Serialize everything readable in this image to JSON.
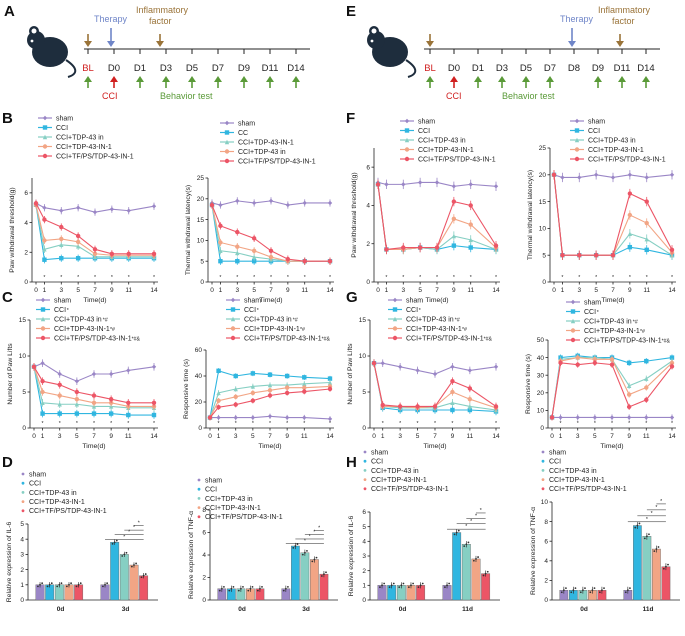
{
  "colors": {
    "sham": "#9a86c6",
    "cci": "#30b6e0",
    "tdp_in": "#86cfc3",
    "tdp_in1": "#f2a585",
    "tf_ps": "#ec5566"
  },
  "timelines": [
    {
      "letter": "A",
      "days": [
        "BL",
        "D0",
        "D1",
        "D3",
        "D5",
        "D7",
        "D9",
        "D11",
        "D14"
      ],
      "therapy": "Therapy",
      "inflam_line1": "Inflammatory",
      "inflam_line2": "factor",
      "cci": "CCI",
      "behavior": "Behavior test"
    },
    {
      "letter": "E",
      "days": [
        "BL",
        "D0",
        "D1",
        "D3",
        "D5",
        "D7",
        "D8",
        "D9",
        "D11",
        "D14"
      ],
      "therapy": "Therapy",
      "inflam_line1": "Inflammatory",
      "inflam_line2": "factor",
      "cci": "CCI",
      "behavior": "Behavior test"
    }
  ],
  "chart_data": [
    {
      "id": "B1",
      "panel": "B",
      "type": "line",
      "ylabel": "Paw withdrawal threshold(g)",
      "xlabel": "Time(d)",
      "x": [
        0,
        1,
        3,
        5,
        7,
        9,
        11,
        14
      ],
      "ylim": [
        0,
        7
      ],
      "yticks": [
        0,
        2,
        4,
        6
      ],
      "legend": [
        "sham",
        "CCI",
        "CCI+TDP-43 in",
        "CCI+TDP-43-IN-1",
        "CCI+TF/PS/TDP-43-IN-1"
      ],
      "series": [
        {
          "name": "sham",
          "values": [
            5.3,
            5.0,
            4.8,
            5.0,
            4.7,
            4.9,
            4.8,
            5.1
          ]
        },
        {
          "name": "CCI",
          "values": [
            5.2,
            1.5,
            1.6,
            1.6,
            1.6,
            1.6,
            1.6,
            1.6
          ]
        },
        {
          "name": "CCI+TDP-43 in",
          "values": [
            5.2,
            2.2,
            2.5,
            2.4,
            1.7,
            1.7,
            1.7,
            1.7
          ]
        },
        {
          "name": "CCI+TDP-43-IN-1",
          "values": [
            5.2,
            2.8,
            2.9,
            2.7,
            1.9,
            1.8,
            1.8,
            1.8
          ]
        },
        {
          "name": "CCI+TF/PS/TDP-43-IN-1",
          "values": [
            5.3,
            4.2,
            3.7,
            3.1,
            2.2,
            1.9,
            1.9,
            1.9
          ]
        }
      ]
    },
    {
      "id": "B2",
      "panel": "B",
      "type": "line",
      "ylabel": "Thermal withdrawal latency(s)",
      "xlabel": "Time(d)",
      "x": [
        0,
        1,
        3,
        5,
        7,
        9,
        11,
        14
      ],
      "ylim": [
        0,
        25
      ],
      "yticks": [
        0,
        5,
        10,
        15,
        20,
        25
      ],
      "legend": [
        "sham",
        "CC",
        "CCI+TDP-43-IN-1",
        "CCI+TDP-43 in",
        "CCI+TF/PS/TDP-43-IN-1"
      ],
      "series": [
        {
          "name": "sham",
          "values": [
            19.0,
            18.5,
            19.5,
            19.0,
            19.5,
            18.5,
            19.0,
            19.0
          ]
        },
        {
          "name": "CC",
          "values": [
            18.5,
            5.0,
            5.0,
            5.0,
            5.0,
            5.0,
            5.0,
            5.0
          ]
        },
        {
          "name": "CCI+TDP-43-IN-1",
          "values": [
            18.5,
            7.5,
            7.0,
            6.0,
            5.5,
            5.0,
            5.0,
            5.0
          ]
        },
        {
          "name": "CCI+TDP-43 in",
          "values": [
            18.5,
            9.5,
            8.5,
            7.5,
            6.0,
            5.0,
            5.0,
            5.0
          ]
        },
        {
          "name": "CCI+TF/PS/TDP-43-IN-1",
          "values": [
            18.5,
            13.5,
            12.0,
            10.5,
            7.5,
            5.5,
            5.0,
            5.0
          ]
        }
      ]
    },
    {
      "id": "C1",
      "panel": "C",
      "type": "line",
      "ylabel": "Number of Paw Lifts",
      "xlabel": "Time(d)",
      "x": [
        0,
        1,
        3,
        5,
        7,
        9,
        11,
        14
      ],
      "ylim": [
        0,
        15
      ],
      "yticks": [
        0,
        5,
        10,
        15
      ],
      "legend": [
        "sham",
        "CCI",
        "CCI+TDP-43 in",
        "CCI+TDP-43-IN-1",
        "CCI+TF/PS/TDP-43-IN-1"
      ],
      "legend_marks": [
        "",
        "*",
        "*#",
        "*#",
        "*#&"
      ],
      "series": [
        {
          "name": "sham",
          "values": [
            8.5,
            9.0,
            7.5,
            6.5,
            7.5,
            7.5,
            8.0,
            8.5
          ]
        },
        {
          "name": "CCI",
          "values": [
            8.5,
            2.0,
            2.0,
            2.0,
            2.0,
            2.0,
            1.8,
            1.8
          ]
        },
        {
          "name": "CCI+TDP-43 in",
          "values": [
            8.5,
            3.5,
            3.3,
            3.3,
            3.0,
            3.0,
            2.8,
            2.8
          ]
        },
        {
          "name": "CCI+TDP-43-IN-1",
          "values": [
            8.5,
            5.0,
            4.5,
            4.0,
            3.5,
            3.5,
            3.0,
            3.0
          ]
        },
        {
          "name": "CCI+TF/PS/TDP-43-IN-1",
          "values": [
            8.5,
            6.5,
            6.0,
            5.0,
            4.5,
            4.0,
            3.5,
            3.5
          ]
        }
      ]
    },
    {
      "id": "C2",
      "panel": "C",
      "type": "line",
      "ylabel": "Responsive time (s)",
      "xlabel": "Time(d)",
      "x": [
        0,
        1,
        3,
        5,
        7,
        9,
        11,
        14
      ],
      "ylim": [
        0,
        60
      ],
      "yticks": [
        0,
        20,
        40,
        60
      ],
      "legend": [
        "sham",
        "CCI",
        "CCI+TDP-43 in",
        "CCI+TDP-43-IN-1",
        "CCI+TF/PS/TDP-43-IN-1"
      ],
      "legend_marks": [
        "",
        "*",
        "*#",
        "*#",
        "*#&"
      ],
      "series": [
        {
          "name": "sham",
          "values": [
            8,
            8,
            8,
            8,
            9,
            8,
            8,
            7
          ]
        },
        {
          "name": "CCI",
          "values": [
            8,
            44,
            40,
            42,
            41,
            40,
            39,
            38
          ]
        },
        {
          "name": "CCI+TDP-43 in",
          "values": [
            8,
            27,
            30,
            32,
            33,
            33,
            34,
            35
          ]
        },
        {
          "name": "CCI+TDP-43-IN-1",
          "values": [
            8,
            21,
            24,
            27,
            29,
            31,
            31,
            32
          ]
        },
        {
          "name": "CCI+TF/PS/TDP-43-IN-1",
          "values": [
            8,
            16,
            18,
            21,
            25,
            27,
            28,
            30
          ]
        }
      ]
    },
    {
      "id": "D1",
      "panel": "D",
      "type": "bar",
      "ylabel": "Relative expression of IL-6",
      "categories": [
        "0d",
        "3d"
      ],
      "ylim": [
        0,
        5
      ],
      "yticks": [
        0,
        1,
        2,
        3,
        4,
        5
      ],
      "legend": [
        "sham",
        "CCI",
        "CCI+TDP-43 in",
        "CCI+TDP-43-IN-1",
        "CCI+TF/PS/TDP-43-IN-1"
      ],
      "series": [
        {
          "name": "sham",
          "values": [
            1.0,
            1.0
          ]
        },
        {
          "name": "CCI",
          "values": [
            1.0,
            3.8
          ]
        },
        {
          "name": "CCI+TDP-43 in",
          "values": [
            1.0,
            3.0
          ]
        },
        {
          "name": "CCI+TDP-43-IN-1",
          "values": [
            1.0,
            2.3
          ]
        },
        {
          "name": "CCI+TF/PS/TDP-43-IN-1",
          "values": [
            1.0,
            1.6
          ]
        }
      ]
    },
    {
      "id": "D2",
      "panel": "D",
      "type": "bar",
      "ylabel": "Relative expression of TNF-α",
      "categories": [
        "0d",
        "3d"
      ],
      "ylim": [
        0,
        8
      ],
      "yticks": [
        0,
        2,
        4,
        6,
        8
      ],
      "legend": [
        "sham",
        "CCI",
        "CCI+TDP-43 in",
        "CCI+TDP-43-IN-1",
        "CCI+TF/PS/TDP-43-IN-1"
      ],
      "series": [
        {
          "name": "sham",
          "values": [
            1.0,
            1.0
          ]
        },
        {
          "name": "CCI",
          "values": [
            1.0,
            4.8
          ]
        },
        {
          "name": "CCI+TDP-43 in",
          "values": [
            1.0,
            4.2
          ]
        },
        {
          "name": "CCI+TDP-43-IN-1",
          "values": [
            1.0,
            3.6
          ]
        },
        {
          "name": "CCI+TF/PS/TDP-43-IN-1",
          "values": [
            1.0,
            2.3
          ]
        }
      ]
    },
    {
      "id": "F1",
      "panel": "F",
      "type": "line",
      "ylabel": "Paw withdrawal threshold(g)",
      "xlabel": "Time(d)",
      "x": [
        0,
        1,
        3,
        5,
        7,
        9,
        11,
        14
      ],
      "ylim": [
        0,
        7
      ],
      "yticks": [
        0,
        2,
        4,
        6
      ],
      "legend": [
        "sham",
        "CCI",
        "CCI+TDP-43 in",
        "CCI+TDP-43-IN-1",
        "CCI+TF/PS/TDP-43-IN-1"
      ],
      "series": [
        {
          "name": "sham",
          "values": [
            5.2,
            5.1,
            5.1,
            5.2,
            5.2,
            5.0,
            5.1,
            5.0
          ]
        },
        {
          "name": "CCI",
          "values": [
            5.1,
            1.7,
            1.7,
            1.8,
            1.7,
            1.9,
            1.8,
            1.7
          ]
        },
        {
          "name": "CCI+TDP-43 in",
          "values": [
            5.1,
            1.7,
            1.7,
            1.8,
            1.7,
            2.4,
            2.2,
            1.7
          ]
        },
        {
          "name": "CCI+TDP-43-IN-1",
          "values": [
            5.1,
            1.7,
            1.7,
            1.8,
            1.8,
            3.3,
            3.0,
            1.8
          ]
        },
        {
          "name": "CCI+TF/PS/TDP-43-IN-1",
          "values": [
            5.1,
            1.7,
            1.8,
            1.8,
            1.8,
            4.2,
            4.0,
            1.9
          ]
        }
      ]
    },
    {
      "id": "F2",
      "panel": "F",
      "type": "line",
      "ylabel": "Thermal withdrawal latency(s)",
      "xlabel": "Time(d)",
      "x": [
        0,
        1,
        3,
        5,
        7,
        9,
        11,
        14
      ],
      "ylim": [
        0,
        25
      ],
      "yticks": [
        0,
        5,
        10,
        15,
        20,
        25
      ],
      "legend": [
        "sham",
        "CCI",
        "CCI+TDP-43 in",
        "CCI+TDP-43-IN-1",
        "CCI+TF/PS/TDP-43-IN-1"
      ],
      "series": [
        {
          "name": "sham",
          "values": [
            20.0,
            19.5,
            19.5,
            20.0,
            19.5,
            20.0,
            19.5,
            20.0
          ]
        },
        {
          "name": "CCI",
          "values": [
            20.0,
            5.0,
            5.0,
            5.0,
            5.0,
            6.5,
            6.0,
            5.0
          ]
        },
        {
          "name": "CCI+TDP-43 in",
          "values": [
            20.0,
            5.0,
            5.0,
            5.0,
            5.0,
            9.0,
            8.0,
            5.0
          ]
        },
        {
          "name": "CCI+TDP-43-IN-1",
          "values": [
            20.0,
            5.0,
            5.0,
            5.0,
            5.0,
            12.5,
            11.0,
            5.5
          ]
        },
        {
          "name": "CCI+TF/PS/TDP-43-IN-1",
          "values": [
            20.0,
            5.0,
            5.0,
            5.0,
            5.0,
            16.5,
            15.0,
            6.0
          ]
        }
      ]
    },
    {
      "id": "G1",
      "panel": "G",
      "type": "line",
      "ylabel": "Number of Paw Lifts",
      "xlabel": "Time(d)",
      "x": [
        0,
        1,
        3,
        5,
        7,
        9,
        11,
        14
      ],
      "ylim": [
        0,
        15
      ],
      "yticks": [
        0,
        5,
        10,
        15
      ],
      "legend": [
        "sham",
        "CCI",
        "CCI+TDP-43 in",
        "CCI+TDP-43-IN-1",
        "CCI+TF/PS/TDP-43-IN-1"
      ],
      "legend_marks": [
        "",
        "*",
        "*#",
        "*#",
        "*#&"
      ],
      "series": [
        {
          "name": "sham",
          "values": [
            9.0,
            9.0,
            8.5,
            8.0,
            7.5,
            8.5,
            8.0,
            8.5
          ]
        },
        {
          "name": "CCI",
          "values": [
            9.0,
            2.8,
            2.5,
            2.5,
            2.5,
            2.5,
            2.5,
            2.3
          ]
        },
        {
          "name": "CCI+TDP-43 in",
          "values": [
            9.0,
            3.0,
            2.8,
            2.8,
            2.8,
            3.5,
            3.0,
            2.5
          ]
        },
        {
          "name": "CCI+TDP-43-IN-1",
          "values": [
            9.0,
            3.0,
            3.0,
            2.8,
            3.0,
            5.0,
            4.0,
            2.8
          ]
        },
        {
          "name": "CCI+TF/PS/TDP-43-IN-1",
          "values": [
            9.0,
            3.2,
            3.0,
            3.0,
            3.0,
            6.5,
            5.5,
            3.0
          ]
        }
      ]
    },
    {
      "id": "G2",
      "panel": "G",
      "type": "line",
      "ylabel": "Responsive time (s)",
      "xlabel": "Time(d)",
      "x": [
        0,
        1,
        3,
        5,
        7,
        9,
        11,
        14
      ],
      "ylim": [
        0,
        50
      ],
      "yticks": [
        0,
        10,
        20,
        30,
        40,
        50
      ],
      "legend": [
        "sham",
        "CCI",
        "CCI+TDP-43 in",
        "CCI+TDP-43-IN-1",
        "CCI+TF/PS/TDP-43-IN-1"
      ],
      "legend_marks": [
        "",
        "*",
        "*#",
        "*#",
        "*#&"
      ],
      "series": [
        {
          "name": "sham",
          "values": [
            6,
            6,
            6,
            6,
            6,
            6,
            6,
            6
          ]
        },
        {
          "name": "CCI",
          "values": [
            6,
            40,
            41,
            40,
            40,
            37,
            38,
            40
          ]
        },
        {
          "name": "CCI+TDP-43 in",
          "values": [
            6,
            39,
            40,
            40,
            39,
            24,
            28,
            38
          ]
        },
        {
          "name": "CCI+TDP-43-IN-1",
          "values": [
            6,
            38,
            40,
            39,
            39,
            19,
            23,
            37
          ]
        },
        {
          "name": "CCI+TF/PS/TDP-43-IN-1",
          "values": [
            6,
            37,
            36,
            37,
            36,
            12,
            16,
            35
          ]
        }
      ]
    },
    {
      "id": "H1",
      "panel": "H",
      "type": "bar",
      "ylabel": "Relative expression of IL-6",
      "categories": [
        "0d",
        "11d"
      ],
      "ylim": [
        0,
        6
      ],
      "yticks": [
        0,
        1,
        2,
        3,
        4,
        5,
        6
      ],
      "legend": [
        "sham",
        "CCI",
        "CCI+TDP-43 in",
        "CCI+TDP-43-IN-1",
        "CCI+TF/PS/TDP-43-IN-1"
      ],
      "series": [
        {
          "name": "sham",
          "values": [
            1.0,
            1.0
          ]
        },
        {
          "name": "CCI",
          "values": [
            1.0,
            4.6
          ]
        },
        {
          "name": "CCI+TDP-43 in",
          "values": [
            1.0,
            3.8
          ]
        },
        {
          "name": "CCI+TDP-43-IN-1",
          "values": [
            1.0,
            2.8
          ]
        },
        {
          "name": "CCI+TF/PS/TDP-43-IN-1",
          "values": [
            1.0,
            1.8
          ]
        }
      ]
    },
    {
      "id": "H2",
      "panel": "H",
      "type": "bar",
      "ylabel": "Relative expression of TNF-α",
      "categories": [
        "0d",
        "11d"
      ],
      "ylim": [
        0,
        10
      ],
      "yticks": [
        0,
        2,
        4,
        6,
        8,
        10
      ],
      "legend": [
        "sham",
        "CCI",
        "CCI+TDP-43 in",
        "CCI+TDP-43-IN-1",
        "CCI+TF/PS/TDP-43-IN-1"
      ],
      "series": [
        {
          "name": "sham",
          "values": [
            1.0,
            1.0
          ]
        },
        {
          "name": "CCI",
          "values": [
            1.0,
            7.6
          ]
        },
        {
          "name": "CCI+TDP-43 in",
          "values": [
            1.0,
            6.5
          ]
        },
        {
          "name": "CCI+TDP-43-IN-1",
          "values": [
            1.0,
            5.2
          ]
        },
        {
          "name": "CCI+TF/PS/TDP-43-IN-1",
          "values": [
            1.0,
            3.4
          ]
        }
      ]
    }
  ]
}
